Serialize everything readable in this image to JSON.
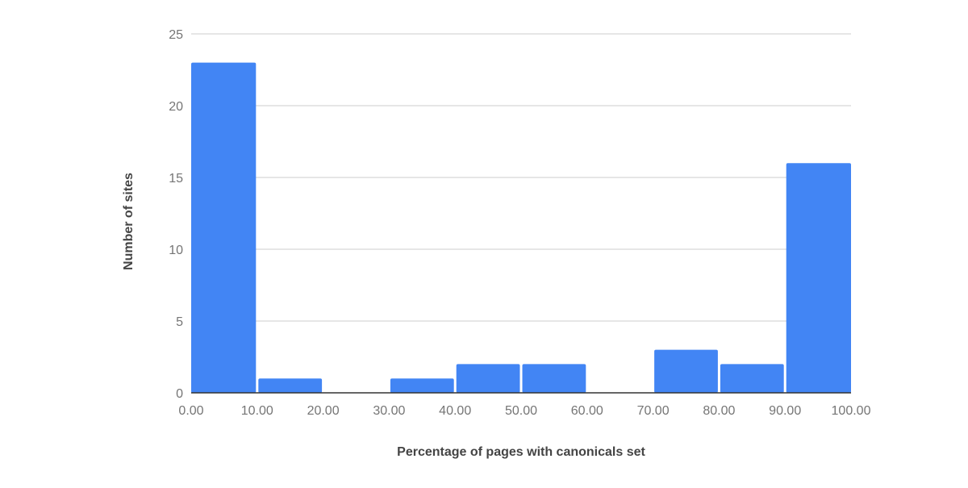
{
  "chart_data": {
    "type": "bar",
    "title": "",
    "xlabel": "Percentage of pages with canonicals set",
    "ylabel": "Number of sites",
    "bins": [
      {
        "start": 0,
        "end": 10,
        "value": 23
      },
      {
        "start": 10,
        "end": 20,
        "value": 1
      },
      {
        "start": 20,
        "end": 30,
        "value": 0
      },
      {
        "start": 30,
        "end": 40,
        "value": 1
      },
      {
        "start": 40,
        "end": 50,
        "value": 2
      },
      {
        "start": 50,
        "end": 60,
        "value": 2
      },
      {
        "start": 60,
        "end": 70,
        "value": 0
      },
      {
        "start": 70,
        "end": 80,
        "value": 3
      },
      {
        "start": 80,
        "end": 90,
        "value": 2
      },
      {
        "start": 90,
        "end": 100,
        "value": 16
      }
    ],
    "x_ticks": [
      "0.00",
      "10.00",
      "20.00",
      "30.00",
      "40.00",
      "50.00",
      "60.00",
      "70.00",
      "80.00",
      "90.00",
      "100.00"
    ],
    "y_ticks": [
      "0",
      "5",
      "10",
      "15",
      "20",
      "25"
    ],
    "xlim": [
      0,
      100
    ],
    "ylim": [
      0,
      25
    ],
    "grid": true,
    "legend": "none",
    "colors": {
      "bar": "#4285f4",
      "grid": "#cccccc",
      "baseline": "#333333",
      "tick_text": "#757575",
      "axis_title": "#444444"
    }
  }
}
